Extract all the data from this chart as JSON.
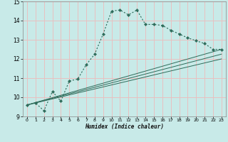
{
  "xlabel": "Humidex (Indice chaleur)",
  "background_color": "#c8eae8",
  "grid_color": "#e8c0c0",
  "line_color": "#2e6b5a",
  "xlim": [
    -0.5,
    23.5
  ],
  "ylim": [
    9,
    15
  ],
  "yticks": [
    9,
    10,
    11,
    12,
    13,
    14,
    15
  ],
  "xticks": [
    0,
    1,
    2,
    3,
    4,
    5,
    6,
    7,
    8,
    9,
    10,
    11,
    12,
    13,
    14,
    15,
    16,
    17,
    18,
    19,
    20,
    21,
    22,
    23
  ],
  "main_x": [
    0,
    1,
    2,
    3,
    4,
    5,
    6,
    7,
    8,
    9,
    10,
    11,
    12,
    13,
    14,
    15,
    16,
    17,
    18,
    19,
    20,
    21,
    22,
    23
  ],
  "main_y": [
    9.6,
    9.7,
    9.3,
    10.3,
    9.8,
    10.85,
    10.95,
    11.7,
    12.25,
    13.3,
    14.5,
    14.55,
    14.3,
    14.55,
    13.8,
    13.8,
    13.75,
    13.5,
    13.3,
    13.1,
    12.95,
    12.8,
    12.5,
    12.5
  ],
  "line1_x": [
    0,
    23
  ],
  "line1_y": [
    9.6,
    12.5
  ],
  "line2_x": [
    0,
    23
  ],
  "line2_y": [
    9.6,
    12.25
  ],
  "line3_x": [
    0,
    23
  ],
  "line3_y": [
    9.6,
    12.0
  ]
}
